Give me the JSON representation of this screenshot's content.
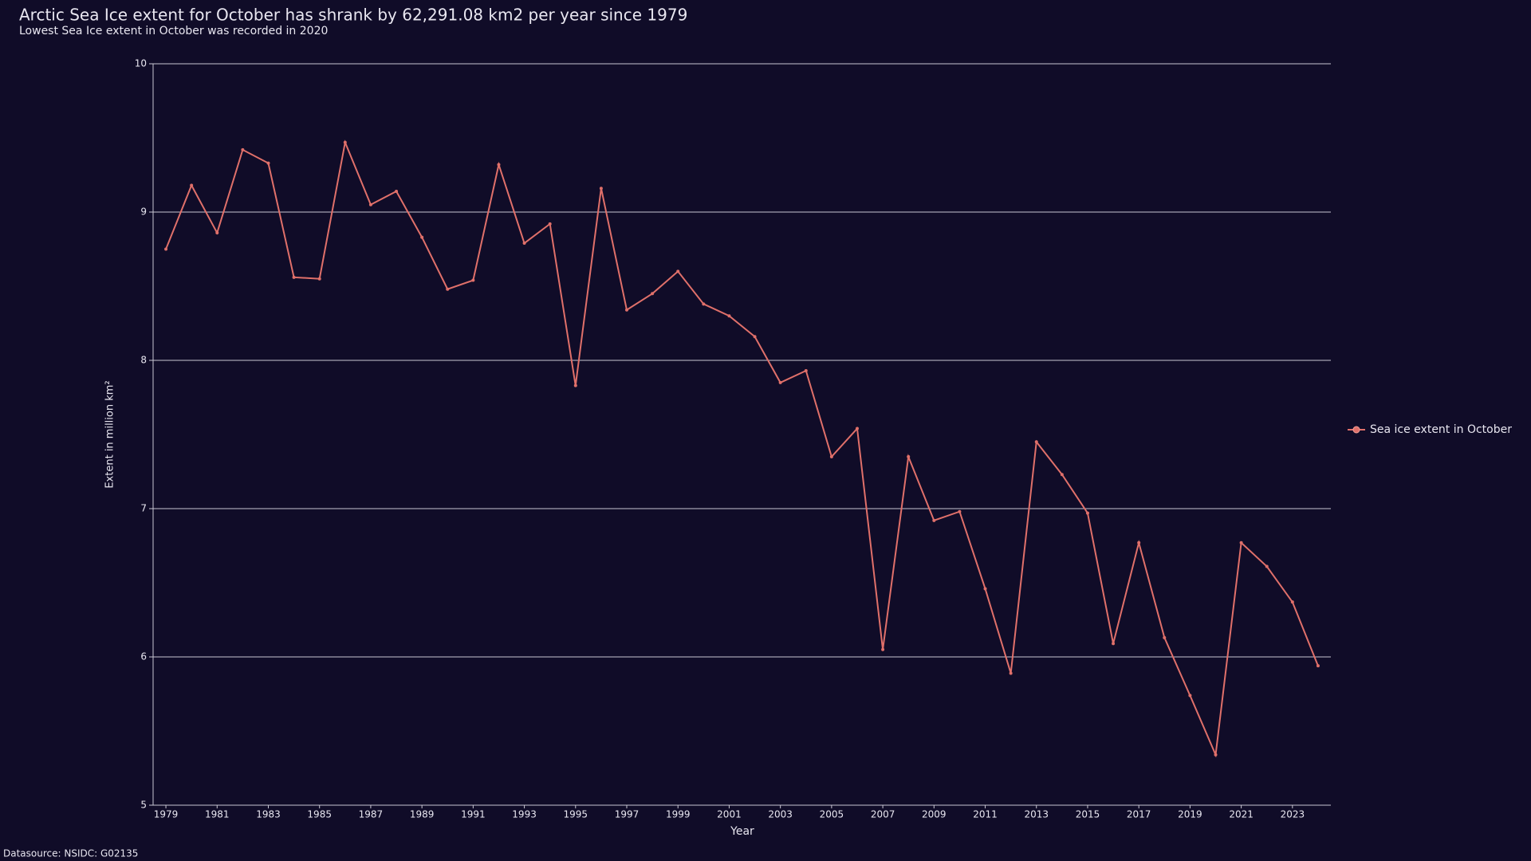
{
  "chart_data": {
    "type": "line",
    "title": "Arctic Sea Ice extent for October has shrank by 62,291.08 km2 per year since 1979",
    "subtitle": "Lowest Sea Ice extent in October was recorded in 2020",
    "x_label": "Year",
    "y_label": "Extent in million km²",
    "source": "Datasource: NSIDC: G02135",
    "x": [
      1979,
      1980,
      1981,
      1982,
      1983,
      1984,
      1985,
      1986,
      1987,
      1988,
      1989,
      1990,
      1991,
      1992,
      1993,
      1994,
      1995,
      1996,
      1997,
      1998,
      1999,
      2000,
      2001,
      2002,
      2003,
      2004,
      2005,
      2006,
      2007,
      2008,
      2009,
      2010,
      2011,
      2012,
      2013,
      2014,
      2015,
      2016,
      2017,
      2018,
      2019,
      2020,
      2021,
      2022,
      2023,
      2024
    ],
    "series": [
      {
        "name": "Sea ice extent in October",
        "color": "#e0706a",
        "values": [
          8.75,
          9.18,
          8.86,
          9.42,
          9.33,
          8.56,
          8.55,
          9.47,
          9.05,
          9.14,
          8.83,
          8.48,
          8.54,
          9.32,
          8.79,
          8.92,
          7.83,
          9.16,
          8.34,
          8.45,
          8.6,
          8.38,
          8.3,
          8.16,
          7.85,
          7.93,
          7.35,
          7.54,
          6.05,
          7.35,
          6.92,
          6.98,
          6.46,
          5.89,
          7.45,
          7.23,
          6.97,
          6.09,
          6.77,
          6.13,
          5.74,
          5.34,
          6.77,
          6.61,
          6.37,
          5.94
        ]
      }
    ],
    "xlim": [
      1978.5,
      2024.5
    ],
    "xticks": [
      1979,
      1981,
      1983,
      1985,
      1987,
      1989,
      1991,
      1993,
      1995,
      1997,
      1999,
      2001,
      2003,
      2005,
      2007,
      2009,
      2011,
      2013,
      2015,
      2017,
      2019,
      2021,
      2023
    ],
    "ylim": [
      5,
      10
    ],
    "yticks": [
      5,
      6,
      7,
      8,
      9,
      10
    ],
    "grid": true,
    "legend": "right"
  }
}
